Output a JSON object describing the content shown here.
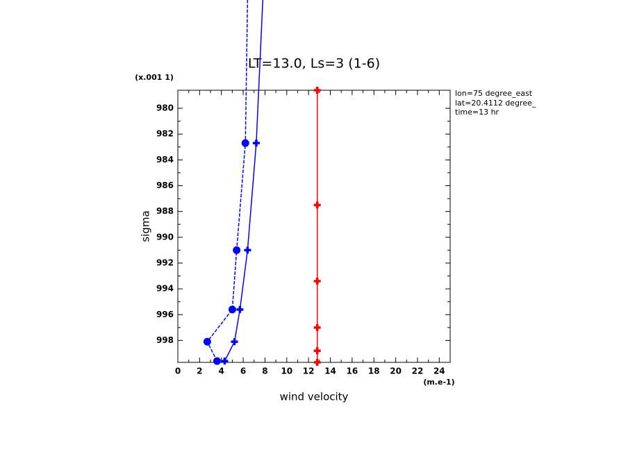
{
  "chart_data": {
    "type": "line",
    "title": "LT=13.0, Ls=3 (1-6)",
    "y_scale_label": "(x.001 1)",
    "ylabel": "sigma",
    "xlabel": "wind velocity",
    "x_unit_label": "(m.e-1)",
    "annotations": [
      "lon=75 degree_east",
      "lat=20.4112 degree_",
      "time=13 hr"
    ],
    "xlim": [
      0,
      25
    ],
    "xticks": [
      0,
      2,
      4,
      6,
      8,
      10,
      12,
      14,
      16,
      18,
      20,
      22,
      24
    ],
    "ylim": [
      999.7,
      978.6
    ],
    "yticks": [
      980,
      982,
      984,
      986,
      988,
      990,
      992,
      994,
      996,
      998
    ],
    "series": [
      {
        "color": "#0000ff",
        "marker": "circle",
        "dash": true,
        "x": [
          3.6,
          2.7,
          5.0,
          5.4,
          6.2,
          6.4
        ],
        "values": [
          999.6,
          998.1,
          995.6,
          991.0,
          982.7,
          971.6
        ]
      },
      {
        "color": "#0000ff",
        "marker": "plus",
        "dash": false,
        "x": [
          4.3,
          5.2,
          5.7,
          6.4,
          7.2,
          7.8
        ],
        "values": [
          999.6,
          998.1,
          995.6,
          991.0,
          982.7,
          971.6
        ]
      },
      {
        "color": "#ff0000",
        "marker": "plus",
        "dash": false,
        "x": [
          12.8,
          12.8,
          12.8,
          12.8,
          12.8,
          12.8
        ],
        "values": [
          978.6,
          987.5,
          993.4,
          997.0,
          998.8,
          999.7
        ]
      }
    ]
  }
}
